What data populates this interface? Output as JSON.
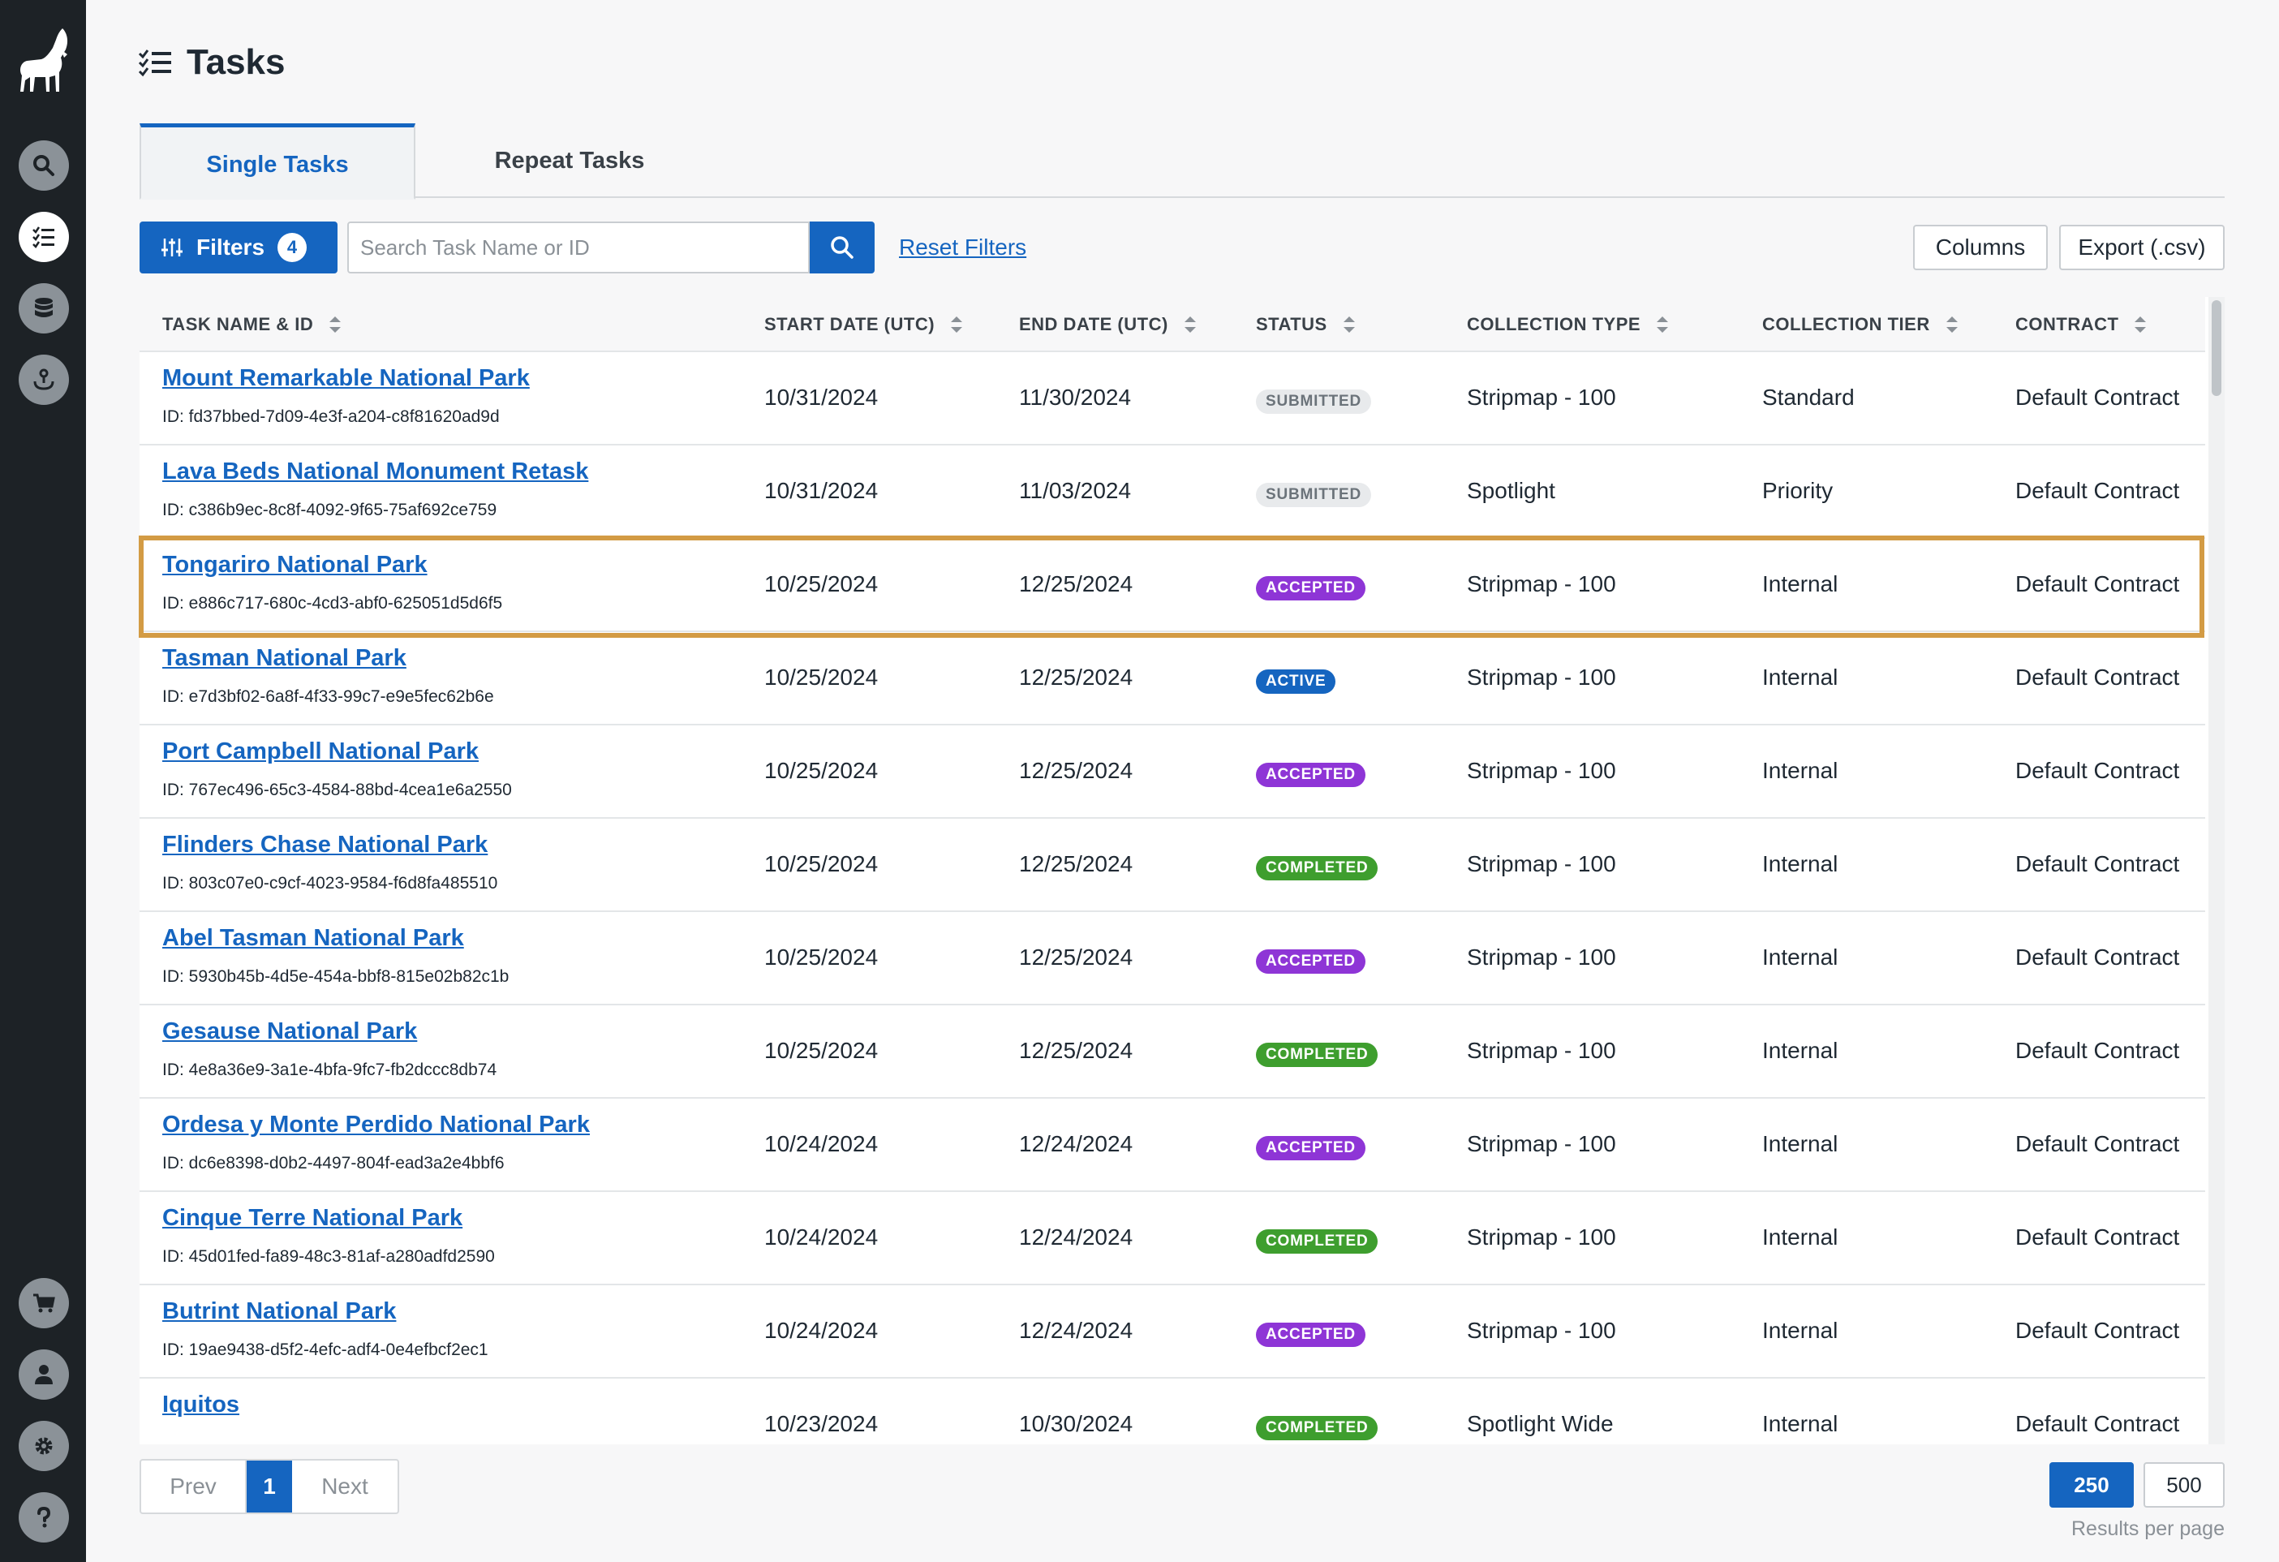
{
  "page": {
    "title": "Tasks"
  },
  "tabs": [
    {
      "label": "Single Tasks",
      "active": true
    },
    {
      "label": "Repeat Tasks",
      "active": false
    }
  ],
  "toolbar": {
    "filters_label": "Filters",
    "filters_count": "4",
    "search_placeholder": "Search Task Name or ID",
    "reset_label": "Reset Filters",
    "columns_label": "Columns",
    "export_label": "Export (.csv)"
  },
  "sidebar": {
    "top_icons": [
      "search-icon",
      "tasks-icon",
      "database-icon",
      "satellite-icon"
    ],
    "bottom_icons": [
      "cart-icon",
      "user-icon",
      "gear-icon",
      "help-icon"
    ],
    "active": "tasks-icon"
  },
  "table": {
    "columns": [
      "TASK NAME & ID",
      "START DATE (UTC)",
      "END DATE (UTC)",
      "STATUS",
      "COLLECTION TYPE",
      "COLLECTION TIER",
      "CONTRACT"
    ],
    "rows": [
      {
        "name": "Mount Remarkable National Park",
        "id": "ID: fd37bbed-7d09-4e3f-a204-c8f81620ad9d",
        "start": "10/31/2024",
        "end": "11/30/2024",
        "status": "SUBMITTED",
        "type": "Stripmap - 100",
        "tier": "Standard",
        "contract": "Default Contract"
      },
      {
        "name": "Lava Beds National Monument Retask",
        "id": "ID: c386b9ec-8c8f-4092-9f65-75af692ce759",
        "start": "10/31/2024",
        "end": "11/03/2024",
        "status": "SUBMITTED",
        "type": "Spotlight",
        "tier": "Priority",
        "contract": "Default Contract"
      },
      {
        "name": "Tongariro National Park",
        "id": "ID: e886c717-680c-4cd3-abf0-625051d5d6f5",
        "start": "10/25/2024",
        "end": "12/25/2024",
        "status": "ACCEPTED",
        "type": "Stripmap - 100",
        "tier": "Internal",
        "contract": "Default Contract",
        "highlighted": true
      },
      {
        "name": "Tasman National Park",
        "id": "ID: e7d3bf02-6a8f-4f33-99c7-e9e5fec62b6e",
        "start": "10/25/2024",
        "end": "12/25/2024",
        "status": "ACTIVE",
        "type": "Stripmap - 100",
        "tier": "Internal",
        "contract": "Default Contract"
      },
      {
        "name": "Port Campbell National Park",
        "id": "ID: 767ec496-65c3-4584-88bd-4cea1e6a2550",
        "start": "10/25/2024",
        "end": "12/25/2024",
        "status": "ACCEPTED",
        "type": "Stripmap - 100",
        "tier": "Internal",
        "contract": "Default Contract"
      },
      {
        "name": "Flinders Chase National Park",
        "id": "ID: 803c07e0-c9cf-4023-9584-f6d8fa485510",
        "start": "10/25/2024",
        "end": "12/25/2024",
        "status": "COMPLETED",
        "type": "Stripmap - 100",
        "tier": "Internal",
        "contract": "Default Contract"
      },
      {
        "name": "Abel Tasman National Park",
        "id": "ID: 5930b45b-4d5e-454a-bbf8-815e02b82c1b",
        "start": "10/25/2024",
        "end": "12/25/2024",
        "status": "ACCEPTED",
        "type": "Stripmap - 100",
        "tier": "Internal",
        "contract": "Default Contract"
      },
      {
        "name": "Gesause National Park",
        "id": "ID: 4e8a36e9-3a1e-4bfa-9fc7-fb2dccc8db74",
        "start": "10/25/2024",
        "end": "12/25/2024",
        "status": "COMPLETED",
        "type": "Stripmap - 100",
        "tier": "Internal",
        "contract": "Default Contract"
      },
      {
        "name": "Ordesa y Monte Perdido National Park",
        "id": "ID: dc6e8398-d0b2-4497-804f-ead3a2e4bbf6",
        "start": "10/24/2024",
        "end": "12/24/2024",
        "status": "ACCEPTED",
        "type": "Stripmap - 100",
        "tier": "Internal",
        "contract": "Default Contract"
      },
      {
        "name": "Cinque Terre National Park",
        "id": "ID: 45d01fed-fa89-48c3-81af-a280adfd2590",
        "start": "10/24/2024",
        "end": "12/24/2024",
        "status": "COMPLETED",
        "type": "Stripmap - 100",
        "tier": "Internal",
        "contract": "Default Contract"
      },
      {
        "name": "Butrint National Park",
        "id": "ID: 19ae9438-d5f2-4efc-adf4-0e4efbcf2ec1",
        "start": "10/24/2024",
        "end": "12/24/2024",
        "status": "ACCEPTED",
        "type": "Stripmap - 100",
        "tier": "Internal",
        "contract": "Default Contract"
      },
      {
        "name": "Iquitos",
        "id": "",
        "start": "10/23/2024",
        "end": "10/30/2024",
        "status": "COMPLETED",
        "type": "Spotlight Wide",
        "tier": "Internal",
        "contract": "Default Contract"
      }
    ]
  },
  "pagination": {
    "prev": "Prev",
    "page": "1",
    "next": "Next"
  },
  "per_page": {
    "options": [
      "250",
      "500"
    ],
    "selected": "250",
    "label": "Results per page"
  },
  "colors": {
    "accent": "#1565c0",
    "sidebar": "#1d2226",
    "highlight": "#d39b44",
    "accepted": "#8e35d6",
    "completed": "#3e9e2e",
    "submitted": "#e8eaec"
  }
}
